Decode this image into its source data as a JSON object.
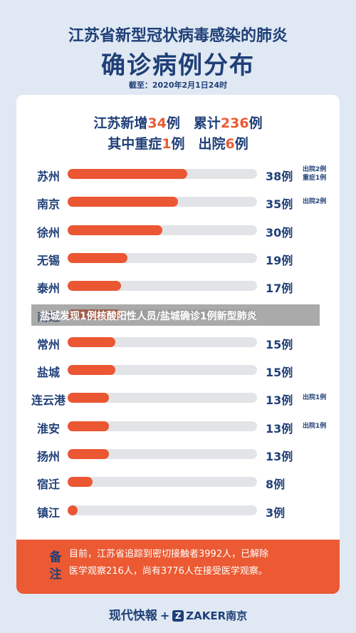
{
  "header": {
    "title_line1": "江苏省新型冠状病毒感染的肺炎",
    "title_line2": "确诊病例分布",
    "cutoff": "截至：2020年2月1日24时"
  },
  "summary": {
    "line1": [
      "江苏新增",
      "34",
      "例　累计",
      "236",
      "例"
    ],
    "line2": [
      "其中重症",
      "1",
      "例　出院",
      "6",
      "例"
    ]
  },
  "overlay_caption": "盐城发现1例核酸阳性人员/盐城确诊1例新型肺炎",
  "chart_data": {
    "type": "bar",
    "orientation": "horizontal",
    "title": "确诊病例分布",
    "categories": [
      "苏州",
      "南京",
      "徐州",
      "无锡",
      "泰州",
      "南通",
      "常州",
      "盐城",
      "连云港",
      "淮安",
      "扬州",
      "宿迁",
      "镇江"
    ],
    "values": [
      38,
      35,
      30,
      19,
      17,
      17,
      15,
      15,
      13,
      13,
      13,
      8,
      3
    ],
    "value_labels": [
      "38例",
      "35例",
      "30例",
      "19例",
      "17例",
      "",
      "15例",
      "15例",
      "13例",
      "13例",
      "13例",
      "8例",
      "3例"
    ],
    "notes": [
      [
        "出院2例",
        "重症1例"
      ],
      [
        "出院2例"
      ],
      [],
      [],
      [],
      [],
      [],
      [],
      [
        "出院1例"
      ],
      [
        "出院1例"
      ],
      [],
      [],
      []
    ],
    "xlim": [
      0,
      60
    ],
    "bar_color": "#ea5732",
    "track_color": "#e3e4e7"
  },
  "footnote": {
    "label_line1": "备",
    "label_line2": "注",
    "text_line1": "目前，江苏省追踪到密切接触者3992人，已解除",
    "text_line2": "医学观察216人，尚有3776人在接受医学观察。"
  },
  "footer": {
    "logo1": "现代快報",
    "plus": "+",
    "z_icon": "Z",
    "logo2": "ZAKER南京"
  },
  "colors": {
    "navy": "#1f3f77",
    "accent": "#eb5a33",
    "background": "#dfe8f3"
  }
}
